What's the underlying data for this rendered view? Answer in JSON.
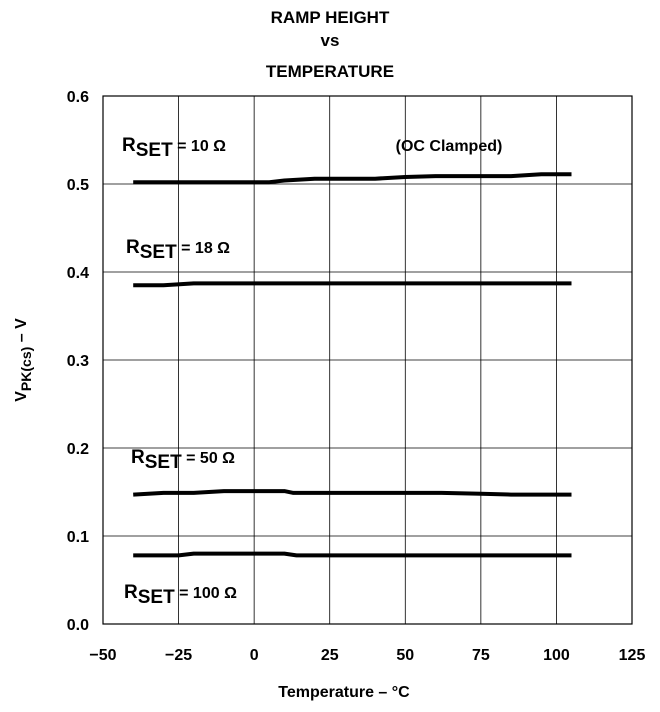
{
  "chart_data": {
    "type": "line",
    "title_lines": [
      "RAMP HEIGHT",
      "vs",
      "TEMPERATURE"
    ],
    "xlabel": "Temperature – °C",
    "ylabel": {
      "main": "V",
      "sub": "PK(cs)",
      "suffix": " – V"
    },
    "xlim": [
      -50,
      125
    ],
    "ylim": [
      0.0,
      0.6
    ],
    "xticks": [
      "−50",
      "−25",
      "0",
      "25",
      "50",
      "75",
      "100",
      "125"
    ],
    "xtick_values": [
      -50,
      -25,
      0,
      25,
      50,
      75,
      100,
      125
    ],
    "yticks": [
      "0.0",
      "0.1",
      "0.2",
      "0.3",
      "0.4",
      "0.5",
      "0.6"
    ],
    "ytick_values": [
      0.0,
      0.1,
      0.2,
      0.3,
      0.4,
      0.5,
      0.6
    ],
    "grid": true,
    "annotation": "(OC Clamped)",
    "series": [
      {
        "label_main": "R",
        "label_sub": "SET",
        "label_rest": " = 10 Ω",
        "x": [
          -40,
          -25,
          0,
          5,
          10,
          15,
          20,
          30,
          40,
          50,
          60,
          75,
          85,
          95,
          105
        ],
        "y": [
          0.502,
          0.502,
          0.502,
          0.502,
          0.504,
          0.505,
          0.506,
          0.506,
          0.506,
          0.508,
          0.509,
          0.509,
          0.509,
          0.511,
          0.511
        ]
      },
      {
        "label_main": "R",
        "label_sub": "SET",
        "label_rest": " = 18 Ω",
        "x": [
          -40,
          -30,
          -20,
          0,
          25,
          50,
          75,
          105
        ],
        "y": [
          0.385,
          0.385,
          0.387,
          0.387,
          0.387,
          0.387,
          0.387,
          0.387
        ]
      },
      {
        "label_main": "R",
        "label_sub": "SET",
        "label_rest": " = 50 Ω",
        "x": [
          -40,
          -30,
          -20,
          -10,
          0,
          10,
          13,
          25,
          50,
          62,
          75,
          85,
          105
        ],
        "y": [
          0.147,
          0.149,
          0.149,
          0.151,
          0.151,
          0.151,
          0.149,
          0.149,
          0.149,
          0.149,
          0.148,
          0.147,
          0.147
        ]
      },
      {
        "label_main": "R",
        "label_sub": "SET",
        "label_rest": " = 100 Ω",
        "x": [
          -40,
          -25,
          -20,
          0,
          10,
          14,
          25,
          50,
          75,
          105
        ],
        "y": [
          0.078,
          0.078,
          0.08,
          0.08,
          0.08,
          0.078,
          0.078,
          0.078,
          0.078,
          0.078
        ]
      }
    ]
  }
}
